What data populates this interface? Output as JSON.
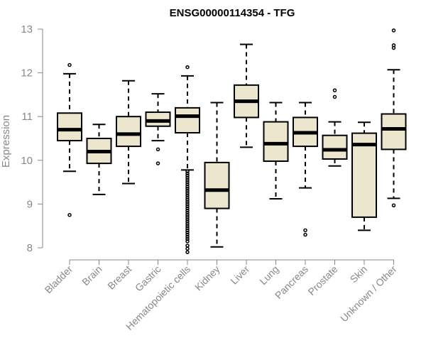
{
  "chart_data": {
    "type": "boxplot",
    "title": "ENSG00000114354 - TFG",
    "xlabel": "",
    "ylabel": "Expression",
    "ylim": [
      7.8,
      13.1
    ],
    "yticks": [
      8,
      9,
      10,
      11,
      12,
      13
    ],
    "box_color": "#ede6cf",
    "categories": [
      "Bladder",
      "Brain",
      "Breast",
      "Gastric",
      "Hematopoietic cells",
      "Kidney",
      "Liver",
      "Lung",
      "Pancreas",
      "Prostate",
      "Skin",
      "Unknown / Other"
    ],
    "boxes": [
      {
        "min": 9.75,
        "q1": 10.45,
        "median": 10.7,
        "q3": 11.08,
        "max": 11.98,
        "outliers": [
          12.18,
          8.75
        ]
      },
      {
        "min": 9.22,
        "q1": 9.93,
        "median": 10.2,
        "q3": 10.5,
        "max": 10.82,
        "outliers": []
      },
      {
        "min": 9.47,
        "q1": 10.32,
        "median": 10.6,
        "q3": 11.0,
        "max": 11.82,
        "outliers": []
      },
      {
        "min": 10.45,
        "q1": 10.78,
        "median": 10.9,
        "q3": 11.1,
        "max": 11.52,
        "outliers": [
          10.25,
          9.93
        ]
      },
      {
        "min": 9.78,
        "q1": 10.63,
        "median": 11.01,
        "q3": 11.2,
        "max": 11.93,
        "outliers": [
          12.13,
          9.75,
          9.7,
          9.65,
          9.6,
          9.55,
          9.5,
          9.45,
          9.4,
          9.35,
          9.3,
          9.25,
          9.2,
          9.15,
          9.1,
          9.05,
          9.0,
          8.95,
          8.9,
          8.85,
          8.8,
          8.75,
          8.7,
          8.65,
          8.6,
          8.55,
          8.5,
          8.45,
          8.4,
          8.35,
          8.3,
          8.25,
          8.2,
          8.15,
          8.05,
          7.98,
          7.9
        ]
      },
      {
        "min": 8.02,
        "q1": 8.9,
        "median": 9.32,
        "q3": 9.95,
        "max": 11.32,
        "outliers": []
      },
      {
        "min": 10.3,
        "q1": 10.98,
        "median": 11.35,
        "q3": 11.72,
        "max": 12.65,
        "outliers": []
      },
      {
        "min": 9.12,
        "q1": 9.98,
        "median": 10.38,
        "q3": 10.88,
        "max": 11.32,
        "outliers": []
      },
      {
        "min": 9.37,
        "q1": 10.32,
        "median": 10.63,
        "q3": 10.98,
        "max": 11.32,
        "outliers": [
          8.4,
          8.3
        ]
      },
      {
        "min": 9.87,
        "q1": 10.03,
        "median": 10.24,
        "q3": 10.57,
        "max": 10.88,
        "outliers": [
          11.6,
          11.45
        ]
      },
      {
        "min": 8.4,
        "q1": 8.7,
        "median": 10.36,
        "q3": 10.62,
        "max": 10.87,
        "outliers": []
      },
      {
        "min": 9.13,
        "q1": 10.25,
        "median": 10.72,
        "q3": 11.06,
        "max": 12.07,
        "outliers": [
          12.97,
          12.63,
          12.57,
          8.97
        ]
      }
    ]
  }
}
